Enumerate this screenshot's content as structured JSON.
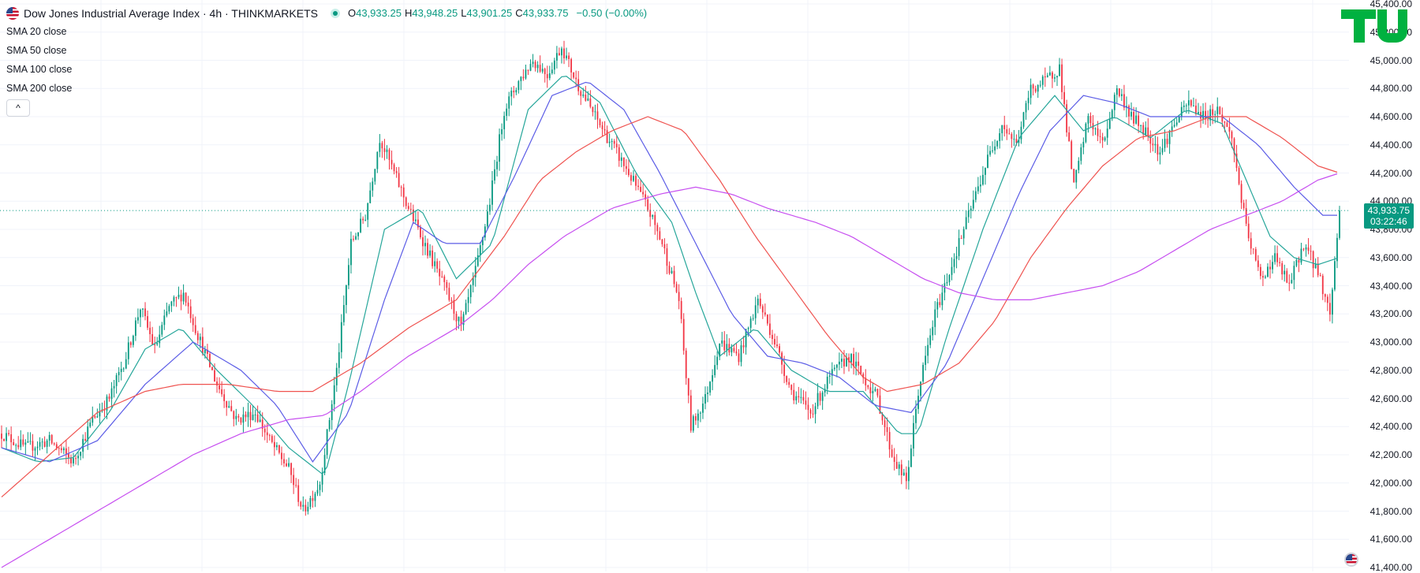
{
  "header": {
    "title": "Dow Jones Industrial Average Index · 4h · THINKMARKETS",
    "ohlc": [
      {
        "key": "O",
        "value": "43,933.25"
      },
      {
        "key": "H",
        "value": "43,948.25"
      },
      {
        "key": "L",
        "value": "43,901.25"
      },
      {
        "key": "C",
        "value": "43,933.75"
      }
    ],
    "change": "−0.50 (−0.00%)",
    "collapse_icon": "chevron-up-icon"
  },
  "indicators": [
    {
      "label": "SMA 20 close",
      "color": "#26a69a"
    },
    {
      "label": "SMA 50 close",
      "color": "#5b5ce6"
    },
    {
      "label": "SMA 100 close",
      "color": "#ef5350"
    },
    {
      "label": "SMA 200 close",
      "color": "#c74ff0"
    }
  ],
  "last_price": {
    "value": "43,933.75",
    "countdown": "03:22:46",
    "color": "#089981"
  },
  "logo": "TU",
  "colors": {
    "up": "#089981",
    "down": "#f23645",
    "grid": "#f0f3fa"
  },
  "chart_data": {
    "type": "candlestick",
    "symbol": "Dow Jones Industrial Average Index",
    "interval": "4h",
    "y_axis": {
      "ticks": [
        "45,400.00",
        "45,200.00",
        "45,000.00",
        "44,800.00",
        "44,600.00",
        "44,400.00",
        "44,200.00",
        "44,000.00",
        "43,800.00",
        "43,600.00",
        "43,400.00",
        "43,200.00",
        "43,000.00",
        "42,800.00",
        "42,600.00",
        "42,400.00",
        "42,200.00",
        "42,000.00",
        "41,800.00",
        "41,600.00",
        "41,400.00"
      ],
      "range": [
        41400,
        45400
      ],
      "position": "right"
    },
    "grid": true,
    "price_path": [
      [
        0,
        42350
      ],
      [
        10,
        42250
      ],
      [
        20,
        42300
      ],
      [
        30,
        42150
      ],
      [
        38,
        42450
      ],
      [
        45,
        42600
      ],
      [
        52,
        42900
      ],
      [
        58,
        43250
      ],
      [
        64,
        42950
      ],
      [
        70,
        43250
      ],
      [
        76,
        43350
      ],
      [
        82,
        43050
      ],
      [
        90,
        42700
      ],
      [
        98,
        42450
      ],
      [
        106,
        42500
      ],
      [
        112,
        42300
      ],
      [
        120,
        42100
      ],
      [
        126,
        41800
      ],
      [
        133,
        42000
      ],
      [
        140,
        42800
      ],
      [
        146,
        43700
      ],
      [
        152,
        43900
      ],
      [
        158,
        44450
      ],
      [
        164,
        44200
      ],
      [
        170,
        43950
      ],
      [
        178,
        43650
      ],
      [
        186,
        43350
      ],
      [
        192,
        43100
      ],
      [
        198,
        43500
      ],
      [
        204,
        44000
      ],
      [
        210,
        44650
      ],
      [
        216,
        44850
      ],
      [
        222,
        45000
      ],
      [
        228,
        44900
      ],
      [
        234,
        45100
      ],
      [
        240,
        44850
      ],
      [
        248,
        44600
      ],
      [
        255,
        44400
      ],
      [
        262,
        44200
      ],
      [
        270,
        43950
      ],
      [
        276,
        43700
      ],
      [
        283,
        43300
      ],
      [
        288,
        42400
      ],
      [
        294,
        42600
      ],
      [
        300,
        43000
      ],
      [
        308,
        42900
      ],
      [
        316,
        43300
      ],
      [
        322,
        43050
      ],
      [
        330,
        42650
      ],
      [
        338,
        42500
      ],
      [
        346,
        42750
      ],
      [
        354,
        42900
      ],
      [
        360,
        42750
      ],
      [
        366,
        42600
      ],
      [
        372,
        42200
      ],
      [
        378,
        42000
      ],
      [
        383,
        42650
      ],
      [
        390,
        43200
      ],
      [
        398,
        43600
      ],
      [
        405,
        43950
      ],
      [
        412,
        44300
      ],
      [
        418,
        44550
      ],
      [
        424,
        44400
      ],
      [
        430,
        44800
      ],
      [
        436,
        44850
      ],
      [
        442,
        44950
      ],
      [
        448,
        44100
      ],
      [
        454,
        44600
      ],
      [
        460,
        44400
      ],
      [
        466,
        44800
      ],
      [
        472,
        44600
      ],
      [
        478,
        44500
      ],
      [
        484,
        44350
      ],
      [
        490,
        44550
      ],
      [
        496,
        44700
      ],
      [
        502,
        44600
      ],
      [
        508,
        44650
      ],
      [
        514,
        44450
      ],
      [
        520,
        43800
      ],
      [
        526,
        43450
      ],
      [
        532,
        43600
      ],
      [
        538,
        43400
      ],
      [
        544,
        43700
      ],
      [
        550,
        43500
      ],
      [
        555,
        43200
      ],
      [
        559,
        43933.75
      ]
    ],
    "series": [
      {
        "name": "SMA 20 close",
        "color": "#26a69a",
        "points": [
          [
            0,
            42250
          ],
          [
            15,
            42150
          ],
          [
            30,
            42180
          ],
          [
            45,
            42500
          ],
          [
            60,
            42950
          ],
          [
            75,
            43100
          ],
          [
            90,
            42800
          ],
          [
            105,
            42550
          ],
          [
            120,
            42250
          ],
          [
            135,
            42050
          ],
          [
            145,
            42700
          ],
          [
            160,
            43800
          ],
          [
            175,
            43950
          ],
          [
            190,
            43450
          ],
          [
            205,
            43700
          ],
          [
            220,
            44650
          ],
          [
            235,
            44900
          ],
          [
            250,
            44700
          ],
          [
            265,
            44200
          ],
          [
            280,
            43850
          ],
          [
            290,
            43350
          ],
          [
            300,
            42900
          ],
          [
            315,
            43100
          ],
          [
            330,
            42800
          ],
          [
            345,
            42650
          ],
          [
            360,
            42650
          ],
          [
            375,
            42350
          ],
          [
            383,
            42350
          ],
          [
            395,
            43050
          ],
          [
            410,
            43800
          ],
          [
            425,
            44450
          ],
          [
            440,
            44750
          ],
          [
            452,
            44500
          ],
          [
            465,
            44600
          ],
          [
            480,
            44450
          ],
          [
            495,
            44650
          ],
          [
            510,
            44550
          ],
          [
            520,
            44150
          ],
          [
            530,
            43750
          ],
          [
            540,
            43600
          ],
          [
            550,
            43550
          ],
          [
            559,
            43600
          ]
        ]
      },
      {
        "name": "SMA 50 close",
        "color": "#5b5ce6",
        "points": [
          [
            0,
            42250
          ],
          [
            20,
            42150
          ],
          [
            40,
            42300
          ],
          [
            60,
            42700
          ],
          [
            80,
            43000
          ],
          [
            100,
            42800
          ],
          [
            115,
            42550
          ],
          [
            130,
            42150
          ],
          [
            145,
            42500
          ],
          [
            160,
            43300
          ],
          [
            172,
            43850
          ],
          [
            185,
            43700
          ],
          [
            200,
            43700
          ],
          [
            215,
            44200
          ],
          [
            230,
            44750
          ],
          [
            245,
            44850
          ],
          [
            260,
            44650
          ],
          [
            275,
            44200
          ],
          [
            290,
            43700
          ],
          [
            305,
            43200
          ],
          [
            320,
            42900
          ],
          [
            335,
            42850
          ],
          [
            350,
            42750
          ],
          [
            365,
            42550
          ],
          [
            380,
            42500
          ],
          [
            395,
            42850
          ],
          [
            410,
            43450
          ],
          [
            425,
            44050
          ],
          [
            438,
            44500
          ],
          [
            452,
            44750
          ],
          [
            465,
            44700
          ],
          [
            480,
            44600
          ],
          [
            495,
            44600
          ],
          [
            510,
            44600
          ],
          [
            525,
            44400
          ],
          [
            540,
            44100
          ],
          [
            552,
            43900
          ],
          [
            559,
            43900
          ]
        ]
      },
      {
        "name": "SMA 100 close",
        "color": "#ef5350",
        "points": [
          [
            0,
            41900
          ],
          [
            20,
            42200
          ],
          [
            40,
            42500
          ],
          [
            60,
            42650
          ],
          [
            75,
            42700
          ],
          [
            95,
            42700
          ],
          [
            115,
            42650
          ],
          [
            130,
            42650
          ],
          [
            150,
            42850
          ],
          [
            170,
            43100
          ],
          [
            190,
            43300
          ],
          [
            210,
            43750
          ],
          [
            225,
            44150
          ],
          [
            240,
            44350
          ],
          [
            255,
            44500
          ],
          [
            270,
            44600
          ],
          [
            285,
            44500
          ],
          [
            300,
            44150
          ],
          [
            315,
            43750
          ],
          [
            330,
            43400
          ],
          [
            345,
            43050
          ],
          [
            360,
            42750
          ],
          [
            370,
            42650
          ],
          [
            385,
            42700
          ],
          [
            400,
            42850
          ],
          [
            415,
            43150
          ],
          [
            430,
            43600
          ],
          [
            445,
            43950
          ],
          [
            460,
            44250
          ],
          [
            475,
            44450
          ],
          [
            490,
            44500
          ],
          [
            505,
            44600
          ],
          [
            520,
            44600
          ],
          [
            535,
            44450
          ],
          [
            550,
            44250
          ],
          [
            559,
            44200
          ]
        ]
      },
      {
        "name": "SMA 200 close",
        "color": "#c74ff0",
        "points": [
          [
            0,
            41400
          ],
          [
            20,
            41600
          ],
          [
            40,
            41800
          ],
          [
            60,
            42000
          ],
          [
            80,
            42200
          ],
          [
            100,
            42350
          ],
          [
            120,
            42450
          ],
          [
            135,
            42480
          ],
          [
            150,
            42650
          ],
          [
            170,
            42900
          ],
          [
            190,
            43100
          ],
          [
            205,
            43300
          ],
          [
            220,
            43550
          ],
          [
            235,
            43750
          ],
          [
            255,
            43950
          ],
          [
            275,
            44050
          ],
          [
            290,
            44100
          ],
          [
            305,
            44050
          ],
          [
            320,
            43950
          ],
          [
            340,
            43850
          ],
          [
            355,
            43750
          ],
          [
            370,
            43600
          ],
          [
            385,
            43450
          ],
          [
            400,
            43350
          ],
          [
            415,
            43300
          ],
          [
            430,
            43300
          ],
          [
            445,
            43350
          ],
          [
            460,
            43400
          ],
          [
            475,
            43500
          ],
          [
            490,
            43650
          ],
          [
            505,
            43800
          ],
          [
            520,
            43900
          ],
          [
            535,
            44000
          ],
          [
            550,
            44150
          ],
          [
            559,
            44200
          ]
        ]
      }
    ]
  }
}
